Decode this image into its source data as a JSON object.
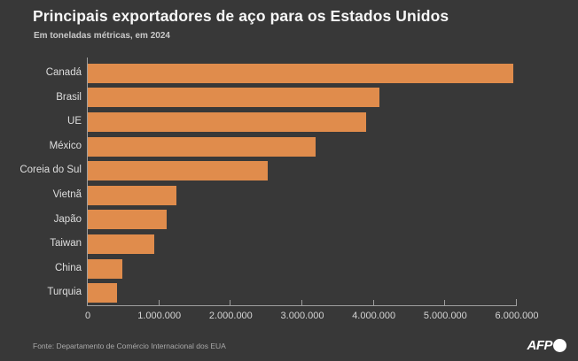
{
  "header": {
    "title": "Principais exportadores de aço para os Estados Unidos",
    "subtitle": "Em toneladas métricas, em 2024"
  },
  "chart_data": {
    "type": "bar",
    "orientation": "horizontal",
    "title": "Principais exportadores de aço para os Estados Unidos",
    "subtitle": "Em toneladas métricas, em 2024",
    "unit": "toneladas métricas",
    "categories": [
      "Canadá",
      "Brasil",
      "UE",
      "México",
      "Coreia do Sul",
      "Vietnã",
      "Japão",
      "Taiwan",
      "China",
      "Turquia"
    ],
    "values": [
      5950000,
      4080000,
      3890000,
      3190000,
      2520000,
      1240000,
      1100000,
      930000,
      480000,
      410000
    ],
    "xlim": [
      0,
      6000000
    ],
    "x_tick_values": [
      0,
      1000000,
      2000000,
      3000000,
      4000000,
      5000000,
      6000000
    ],
    "x_tick_labels": [
      "0",
      "1.000.000",
      "2.000.000",
      "3.000.000",
      "4.000.000",
      "5.000.000",
      "6.000.000"
    ],
    "grid": false,
    "legend": false,
    "bar_color": "#e08c4c"
  },
  "footer": {
    "source": "Fonte: Departamento de Comércio Internacional dos EUA",
    "logo_text": "AFP"
  },
  "colors": {
    "background": "#383838",
    "bar": "#e08c4c",
    "axis": "#9e9e9e",
    "title_text": "#f7f7f7",
    "label_text": "#dedede"
  }
}
